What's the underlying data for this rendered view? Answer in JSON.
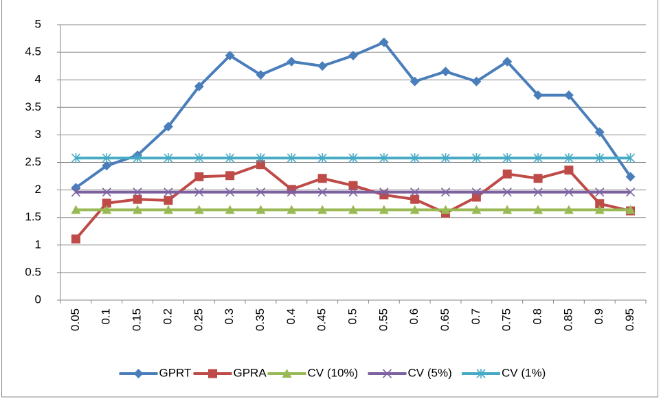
{
  "chart_data": {
    "type": "line",
    "categories": [
      "0.05",
      "0.1",
      "0.15",
      "0.2",
      "0.25",
      "0.3",
      "0.35",
      "0.4",
      "0.45",
      "0.5",
      "0.55",
      "0.6",
      "0.65",
      "0.7",
      "0.75",
      "0.8",
      "0.85",
      "0.9",
      "0.95"
    ],
    "series": [
      {
        "name": "GPRT",
        "color": "#4a7ebb",
        "marker": "diamond",
        "values": [
          2.04,
          2.44,
          2.63,
          3.15,
          3.88,
          4.44,
          4.09,
          4.33,
          4.25,
          4.44,
          4.68,
          3.97,
          4.15,
          3.97,
          4.33,
          3.72,
          3.72,
          3.05,
          2.24
        ]
      },
      {
        "name": "GPRA",
        "color": "#be4b48",
        "marker": "square",
        "values": [
          1.11,
          1.76,
          1.83,
          1.81,
          2.24,
          2.26,
          2.46,
          2.01,
          2.21,
          2.08,
          1.91,
          1.83,
          1.58,
          1.87,
          2.29,
          2.21,
          2.36,
          1.75,
          1.62
        ]
      },
      {
        "name": "CV (10%)",
        "color": "#98b954",
        "marker": "triangle",
        "values": [
          1.64,
          1.64,
          1.64,
          1.64,
          1.64,
          1.64,
          1.64,
          1.64,
          1.64,
          1.64,
          1.64,
          1.64,
          1.64,
          1.64,
          1.64,
          1.64,
          1.64,
          1.64,
          1.64
        ]
      },
      {
        "name": "CV (5%)",
        "color": "#7d60a0",
        "marker": "x",
        "values": [
          1.96,
          1.96,
          1.96,
          1.96,
          1.96,
          1.96,
          1.96,
          1.96,
          1.96,
          1.96,
          1.96,
          1.96,
          1.96,
          1.96,
          1.96,
          1.96,
          1.96,
          1.96,
          1.96
        ]
      },
      {
        "name": "CV (1%)",
        "color": "#46aac5",
        "marker": "star",
        "values": [
          2.58,
          2.58,
          2.58,
          2.58,
          2.58,
          2.58,
          2.58,
          2.58,
          2.58,
          2.58,
          2.58,
          2.58,
          2.58,
          2.58,
          2.58,
          2.58,
          2.58,
          2.58,
          2.58
        ]
      }
    ],
    "ylim": [
      0,
      5
    ],
    "yticks": [
      0,
      0.5,
      1,
      1.5,
      2,
      2.5,
      3,
      3.5,
      4,
      4.5,
      5
    ],
    "grid": true,
    "legend": "bottom"
  }
}
